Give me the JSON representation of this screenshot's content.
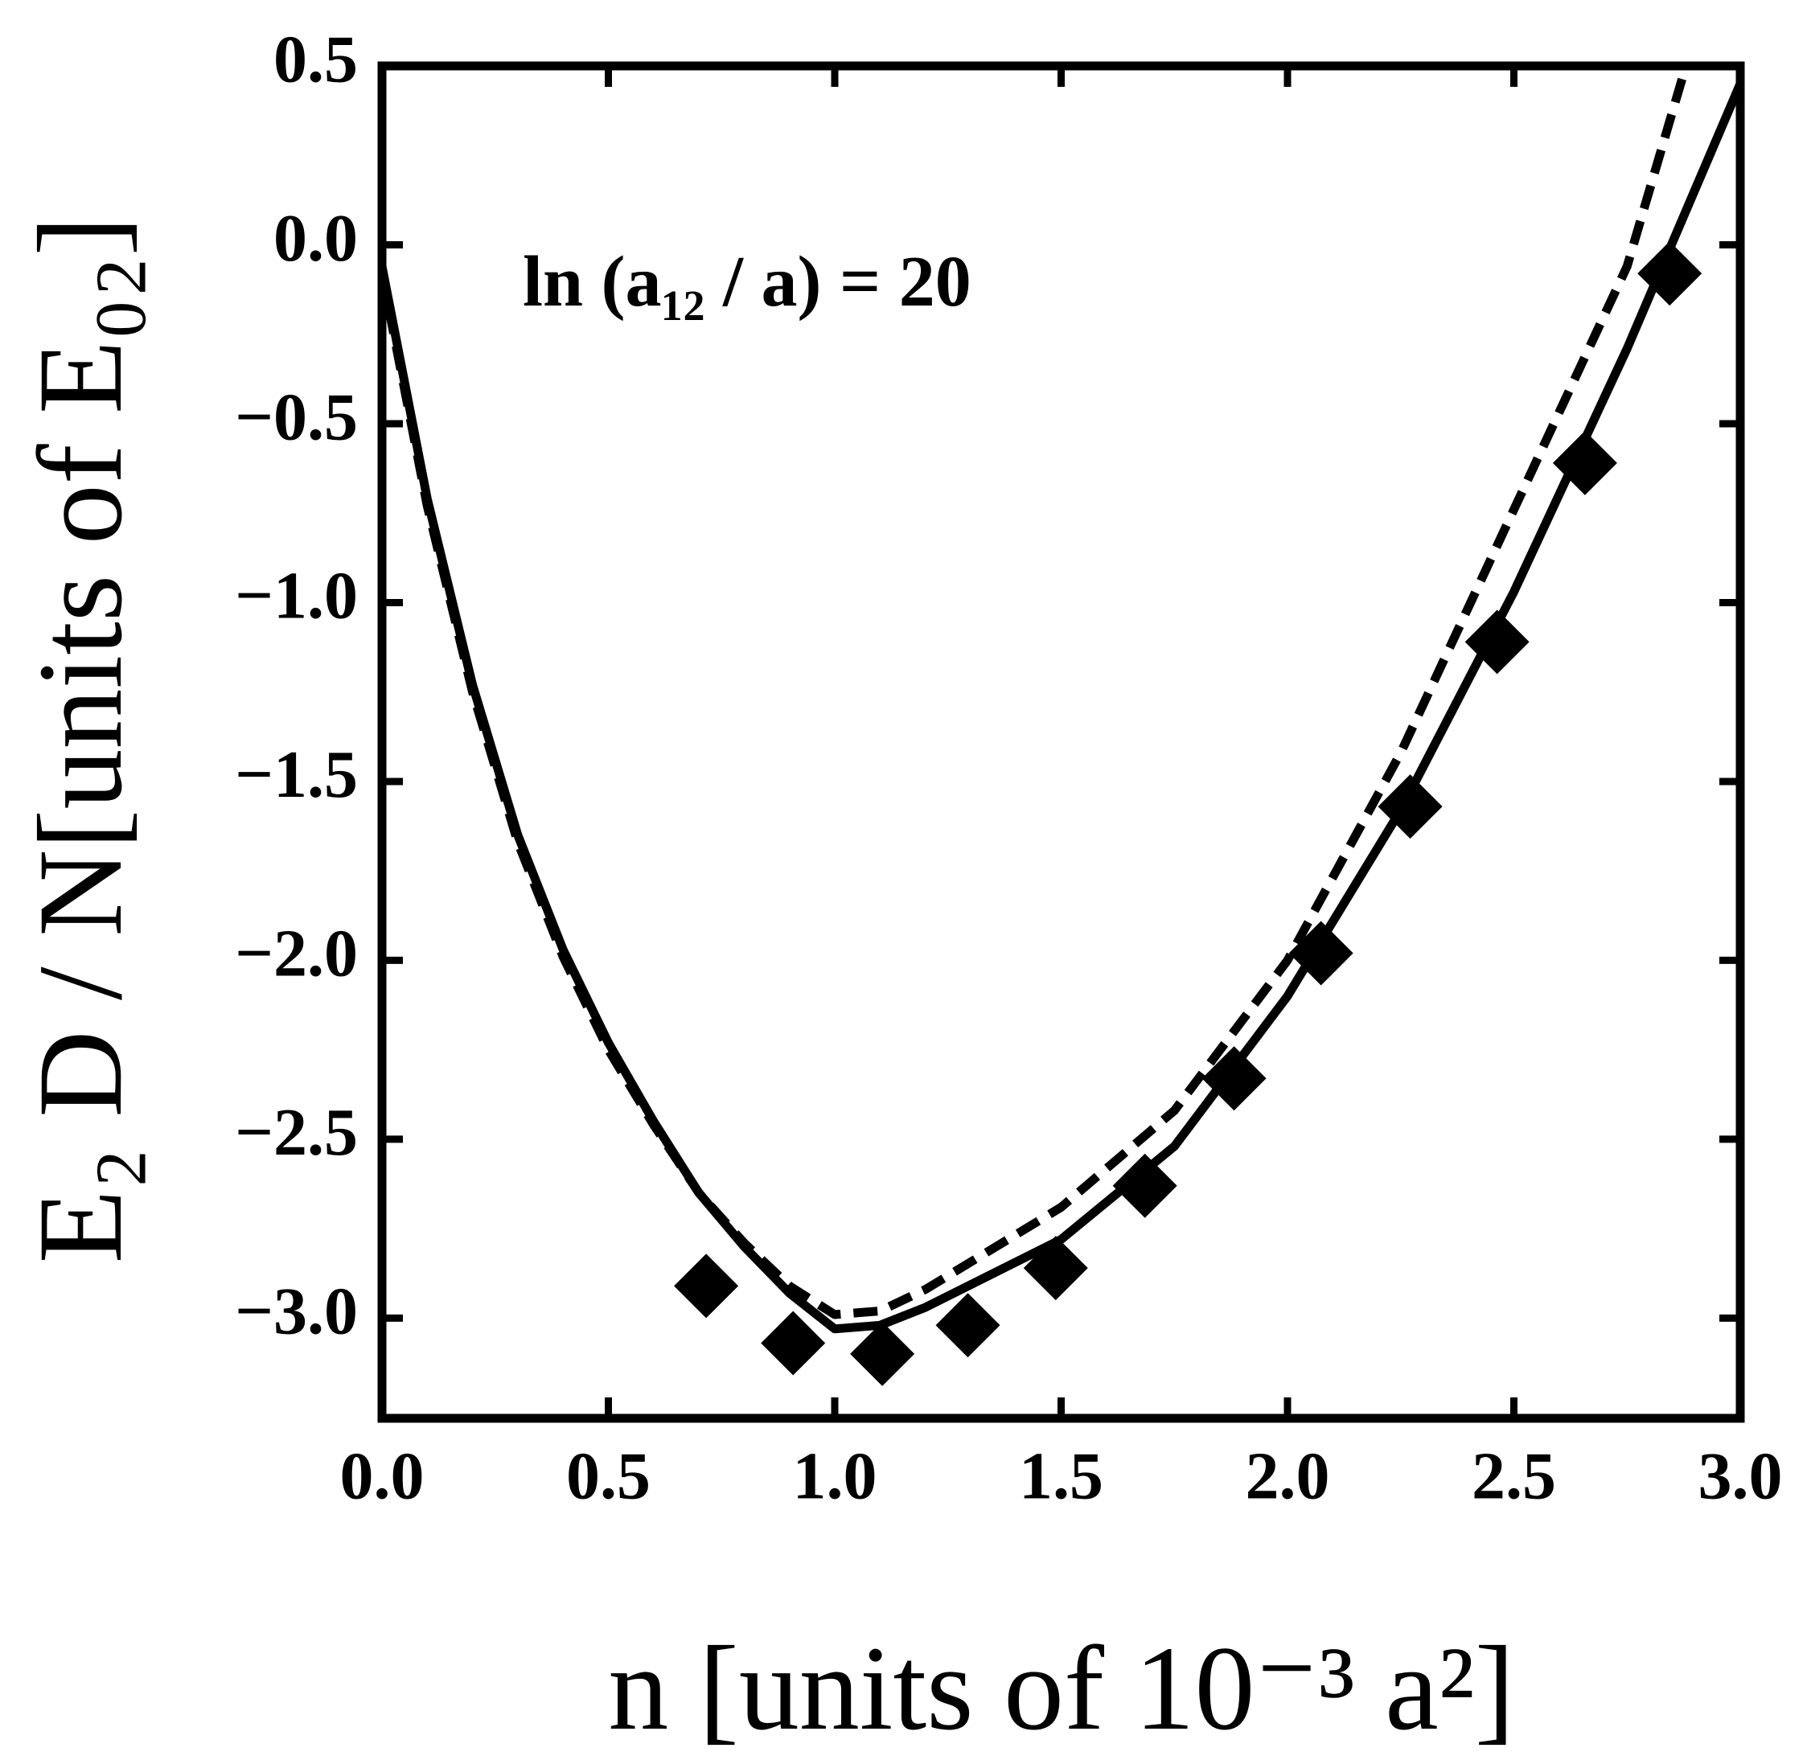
{
  "chart_data": {
    "type": "line",
    "annotation": "ln (a₁₂ / a) = 20",
    "x_label": "n [units of 10⁻³ a²]",
    "y_label": "E₂ D / N[units of E₀₂]",
    "xlim": [
      0,
      3
    ],
    "ylim": [
      -3.28,
      0.5
    ],
    "xticks": [
      {
        "value": 0,
        "label": "0.0"
      },
      0.5,
      {
        "value": 1,
        "label": "1.0"
      },
      1.5,
      {
        "value": 2,
        "label": "2.0"
      },
      2.5,
      {
        "value": 3,
        "label": "3.0"
      }
    ],
    "yticks": [
      0.5,
      {
        "value": 0,
        "label": "0.0"
      },
      {
        "value": -0.5,
        "label": "−0.5"
      },
      {
        "value": -1,
        "label": "−1.0"
      },
      {
        "value": -1.5,
        "label": "−1.5"
      },
      {
        "value": -2,
        "label": "−2.0"
      },
      {
        "value": -2.5,
        "label": "−2.5"
      },
      {
        "value": -3,
        "label": "−3.0"
      }
    ],
    "series": [
      {
        "color": "#000000",
        "style": "solid",
        "x": [
          0,
          0.1,
          0.2,
          0.3,
          0.4,
          0.5,
          0.6,
          0.7,
          0.8,
          0.9,
          1.0,
          1.1,
          1.2,
          1.5,
          1.75,
          2.0,
          2.25,
          2.5,
          2.75,
          3.0
        ],
        "values": [
          -0.06,
          -0.71,
          -1.23,
          -1.65,
          -1.97,
          -2.23,
          -2.45,
          -2.65,
          -2.8,
          -2.93,
          -3.03,
          -3.02,
          -2.97,
          -2.78,
          -2.52,
          -2.1,
          -1.58,
          -0.97,
          -0.29,
          0.45
        ]
      },
      {
        "color": "#000000",
        "style": "dashed",
        "x": [
          0,
          0.1,
          0.2,
          0.3,
          0.4,
          0.5,
          0.6,
          0.7,
          0.8,
          0.9,
          1.0,
          1.1,
          1.2,
          1.5,
          1.75,
          2.0,
          2.25,
          2.5,
          2.75,
          2.88
        ],
        "values": [
          -0.08,
          -0.73,
          -1.25,
          -1.67,
          -1.99,
          -2.25,
          -2.46,
          -2.65,
          -2.79,
          -2.91,
          -2.99,
          -2.98,
          -2.92,
          -2.69,
          -2.42,
          -2.0,
          -1.42,
          -0.74,
          -0.06,
          0.5
        ]
      },
      {
        "color": "#000000",
        "style": "diamond",
        "x": [
          0.716,
          0.908,
          1.105,
          1.294,
          1.488,
          1.685,
          1.882,
          2.074,
          2.271,
          2.463,
          2.657,
          2.844
        ],
        "values": [
          -2.91,
          -3.07,
          -3.1,
          -3.02,
          -2.86,
          -2.63,
          -2.33,
          -1.98,
          -1.57,
          -1.11,
          -0.61,
          -0.08
        ]
      }
    ]
  }
}
